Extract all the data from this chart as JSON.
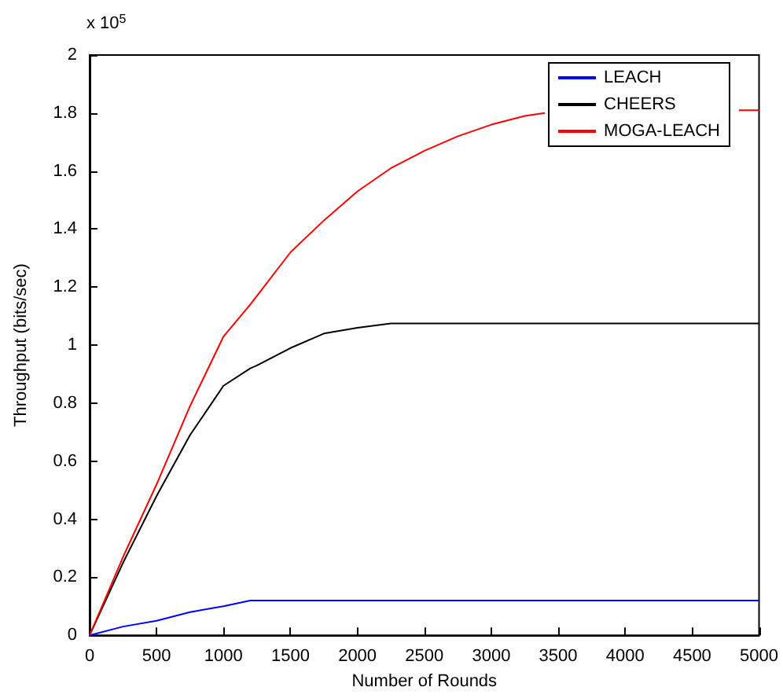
{
  "chart_data": {
    "type": "line",
    "xlabel": "Number of Rounds",
    "ylabel": "Throughput (bits/sec)",
    "annotations": [
      "x 10$^{5}$"
    ],
    "x": [
      0,
      250,
      500,
      750,
      1000,
      1200,
      1250,
      1500,
      1750,
      2000,
      2250,
      2500,
      2750,
      3000,
      3250,
      3500,
      4000,
      4500,
      5000
    ],
    "series": [
      {
        "name": "LEACH",
        "color": "#0000ff",
        "values": [
          0,
          0.03,
          0.05,
          0.08,
          0.1,
          0.12,
          0.12,
          0.12,
          0.12,
          0.12,
          0.12,
          0.12,
          0.12,
          0.12,
          0.12,
          0.12,
          0.12,
          0.12,
          0.12
        ]
      },
      {
        "name": "CHEERS",
        "color": "#000000",
        "values": [
          0,
          0.25,
          0.48,
          0.69,
          0.86,
          0.92,
          0.93,
          0.99,
          1.04,
          1.06,
          1.075,
          1.075,
          1.075,
          1.075,
          1.075,
          1.075,
          1.075,
          1.075,
          1.075
        ]
      },
      {
        "name": "MOGA-LEACH",
        "color": "#ff0000",
        "x": [
          0,
          250,
          500,
          750,
          1000,
          1200,
          1250,
          1500,
          1750,
          2000,
          2250,
          2500,
          2750,
          3000,
          3250,
          3400,
          4000,
          4850,
          5000
        ],
        "values": [
          0,
          0.27,
          0.52,
          0.79,
          1.03,
          1.14,
          1.17,
          1.32,
          1.43,
          1.53,
          1.61,
          1.67,
          1.72,
          1.76,
          1.79,
          1.8,
          null,
          1.81,
          1.81
        ]
      }
    ],
    "xlim": [
      0,
      5000
    ],
    "xticks": [
      0,
      500,
      1000,
      1500,
      2000,
      2500,
      3000,
      3500,
      4000,
      4500,
      5000
    ],
    "ylim": [
      0,
      2
    ],
    "yticks": [
      0,
      0.2,
      0.4,
      0.6,
      0.8,
      1,
      1.2,
      1.4,
      1.6,
      1.8,
      2
    ],
    "legend": "top right",
    "grid": false
  }
}
